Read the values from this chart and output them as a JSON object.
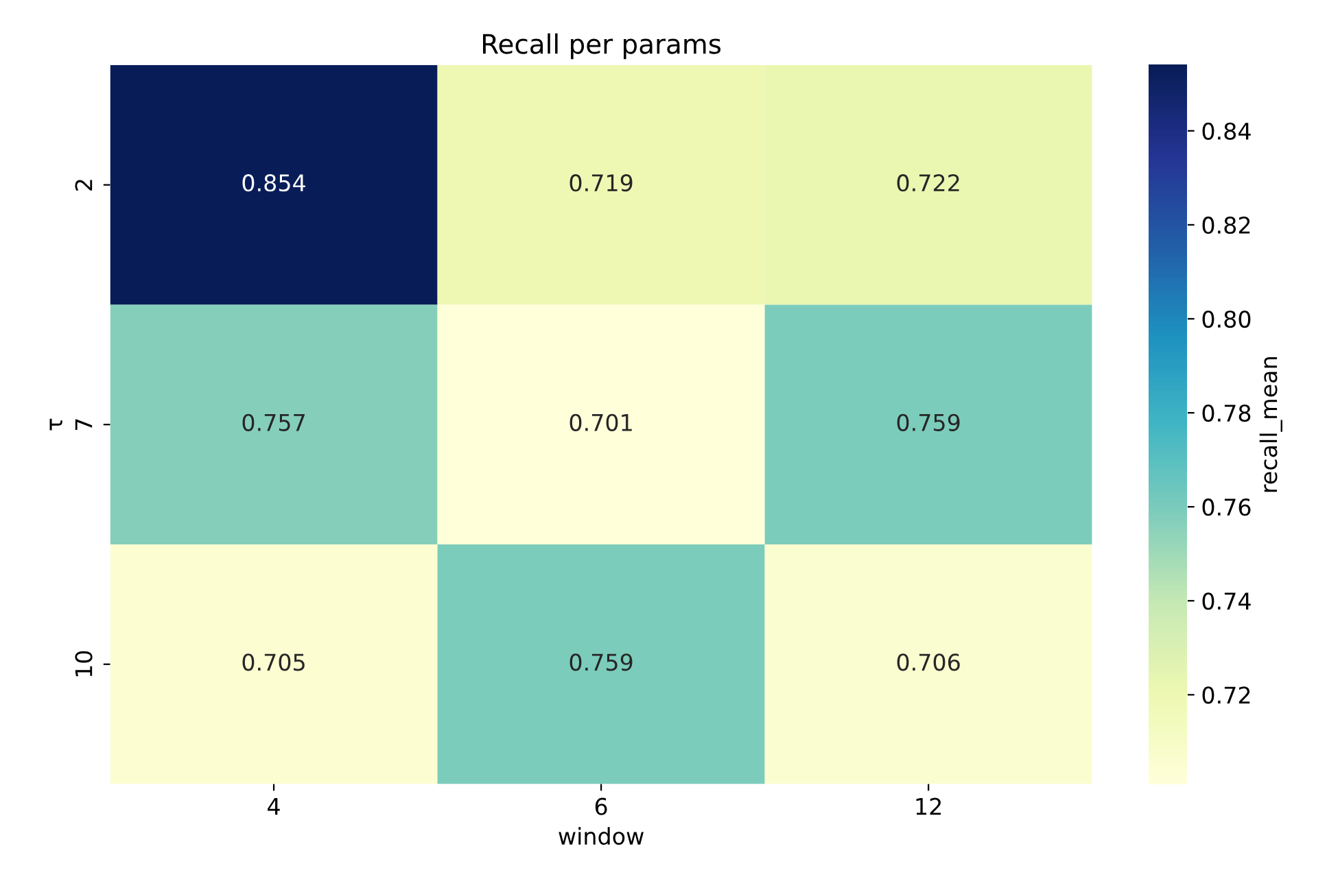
{
  "chart_data": {
    "type": "heatmap",
    "title": "Recall per params",
    "xlabel": "window",
    "ylabel": "τ",
    "clabel": "recall_mean",
    "categories": [
      "4",
      "6",
      "12"
    ],
    "y_categories": [
      "2",
      "7",
      "10"
    ],
    "cells": [
      [
        0.854,
        0.719,
        0.722
      ],
      [
        0.757,
        0.701,
        0.759
      ],
      [
        0.705,
        0.759,
        0.706
      ]
    ],
    "clim": [
      0.701,
      0.854
    ],
    "cticks": [
      0.72,
      0.74,
      0.76,
      0.78,
      {
        "value": 0.8,
        "label": "0.80"
      },
      0.82,
      0.84
    ],
    "data_labels": true
  }
}
